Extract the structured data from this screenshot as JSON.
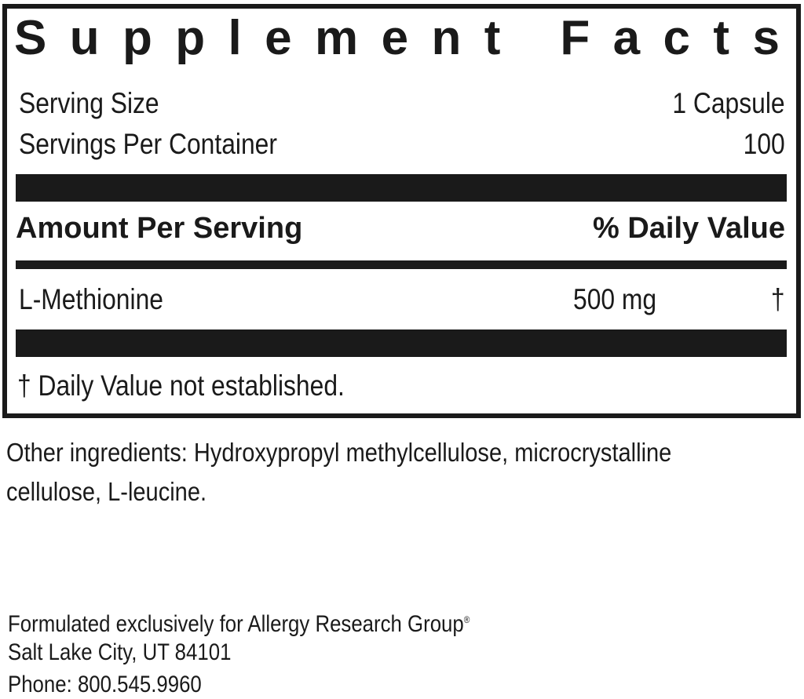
{
  "panel": {
    "title_letters": [
      "S",
      "u",
      "p",
      "p",
      "l",
      "e",
      "m",
      "e",
      "n",
      "t",
      " ",
      "F",
      "a",
      "c",
      "t",
      "s"
    ],
    "title": "Supplement Facts",
    "serving_size_label": "Serving Size",
    "serving_size_value": "1 Capsule",
    "servings_per_container_label": "Servings Per Container",
    "servings_per_container_value": "100",
    "amount_header": "Amount Per Serving",
    "dv_header": "% Daily Value",
    "ingredients": [
      {
        "name": "L-Methionine",
        "amount": "500 mg",
        "dv": "†"
      }
    ],
    "footnote": "† Daily Value not established."
  },
  "other_ingredients": {
    "line1": "Other ingredients: Hydroxypropyl methylcellulose, microcrystalline",
    "line2": "cellulose, L-leucine."
  },
  "footer": {
    "line1": "Formulated exclusively for Allergy Research Group",
    "registered_mark": "®",
    "line2": "Salt Lake City, UT 84101",
    "line3": "Phone: 800.545.9960"
  }
}
